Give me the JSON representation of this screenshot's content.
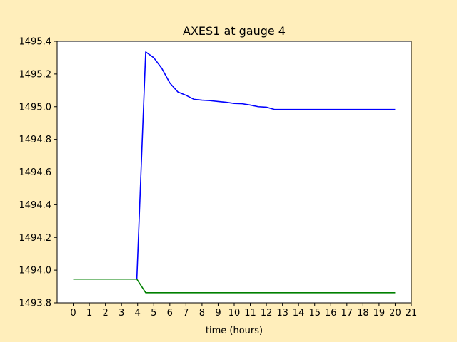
{
  "colors": {
    "figure_background": "#ffeebb",
    "plot_background": "#ffffff",
    "series_1": "#0000ff",
    "series_2": "#008000"
  },
  "chart_data": {
    "type": "line",
    "title": "AXES1 at gauge 4",
    "xlabel": "time (hours)",
    "ylabel": "",
    "xlim": [
      -1,
      21
    ],
    "ylim": [
      1493.8,
      1495.4
    ],
    "x_ticks": [
      0,
      1,
      2,
      3,
      4,
      5,
      6,
      7,
      8,
      9,
      10,
      11,
      12,
      13,
      14,
      15,
      16,
      17,
      18,
      19,
      20,
      21
    ],
    "x_tick_labels": [
      "0",
      "1",
      "2",
      "3",
      "4",
      "5",
      "6",
      "7",
      "8",
      "9",
      "10",
      "11",
      "12",
      "13",
      "14",
      "15",
      "16",
      "17",
      "18",
      "19",
      "20",
      "21"
    ],
    "y_ticks": [
      1493.8,
      1494.0,
      1494.2,
      1494.4,
      1494.6,
      1494.8,
      1495.0,
      1495.2,
      1495.4
    ],
    "y_tick_labels": [
      "1493.8",
      "1494.0",
      "1494.2",
      "1494.4",
      "1494.6",
      "1494.8",
      "1495.0",
      "1495.2",
      "1495.4"
    ],
    "grid": false,
    "legend": false,
    "series": [
      {
        "color": "#0000ff",
        "x": [
          0,
          1,
          2,
          3,
          3.95,
          4.5,
          5,
          5.5,
          6,
          6.5,
          7,
          7.5,
          8,
          8.5,
          9,
          9.5,
          10,
          10.5,
          11,
          11.5,
          12,
          12.5,
          13,
          14,
          15,
          16,
          17,
          18,
          19,
          20
        ],
        "y": [
          1493.945,
          1493.945,
          1493.945,
          1493.945,
          1493.945,
          1495.335,
          1495.3,
          1495.235,
          1495.145,
          1495.09,
          1495.07,
          1495.045,
          1495.04,
          1495.037,
          1495.032,
          1495.027,
          1495.02,
          1495.018,
          1495.01,
          1495.0,
          1494.997,
          1494.983,
          1494.983,
          1494.983,
          1494.983,
          1494.983,
          1494.983,
          1494.983,
          1494.983,
          1494.983
        ]
      },
      {
        "color": "#008000",
        "x": [
          0,
          1,
          2,
          3,
          3.95,
          4.5,
          5,
          6,
          8,
          10,
          12,
          14,
          16,
          18,
          20
        ],
        "y": [
          1493.945,
          1493.945,
          1493.945,
          1493.945,
          1493.945,
          1493.862,
          1493.862,
          1493.862,
          1493.862,
          1493.862,
          1493.862,
          1493.862,
          1493.862,
          1493.862,
          1493.862
        ]
      }
    ]
  }
}
